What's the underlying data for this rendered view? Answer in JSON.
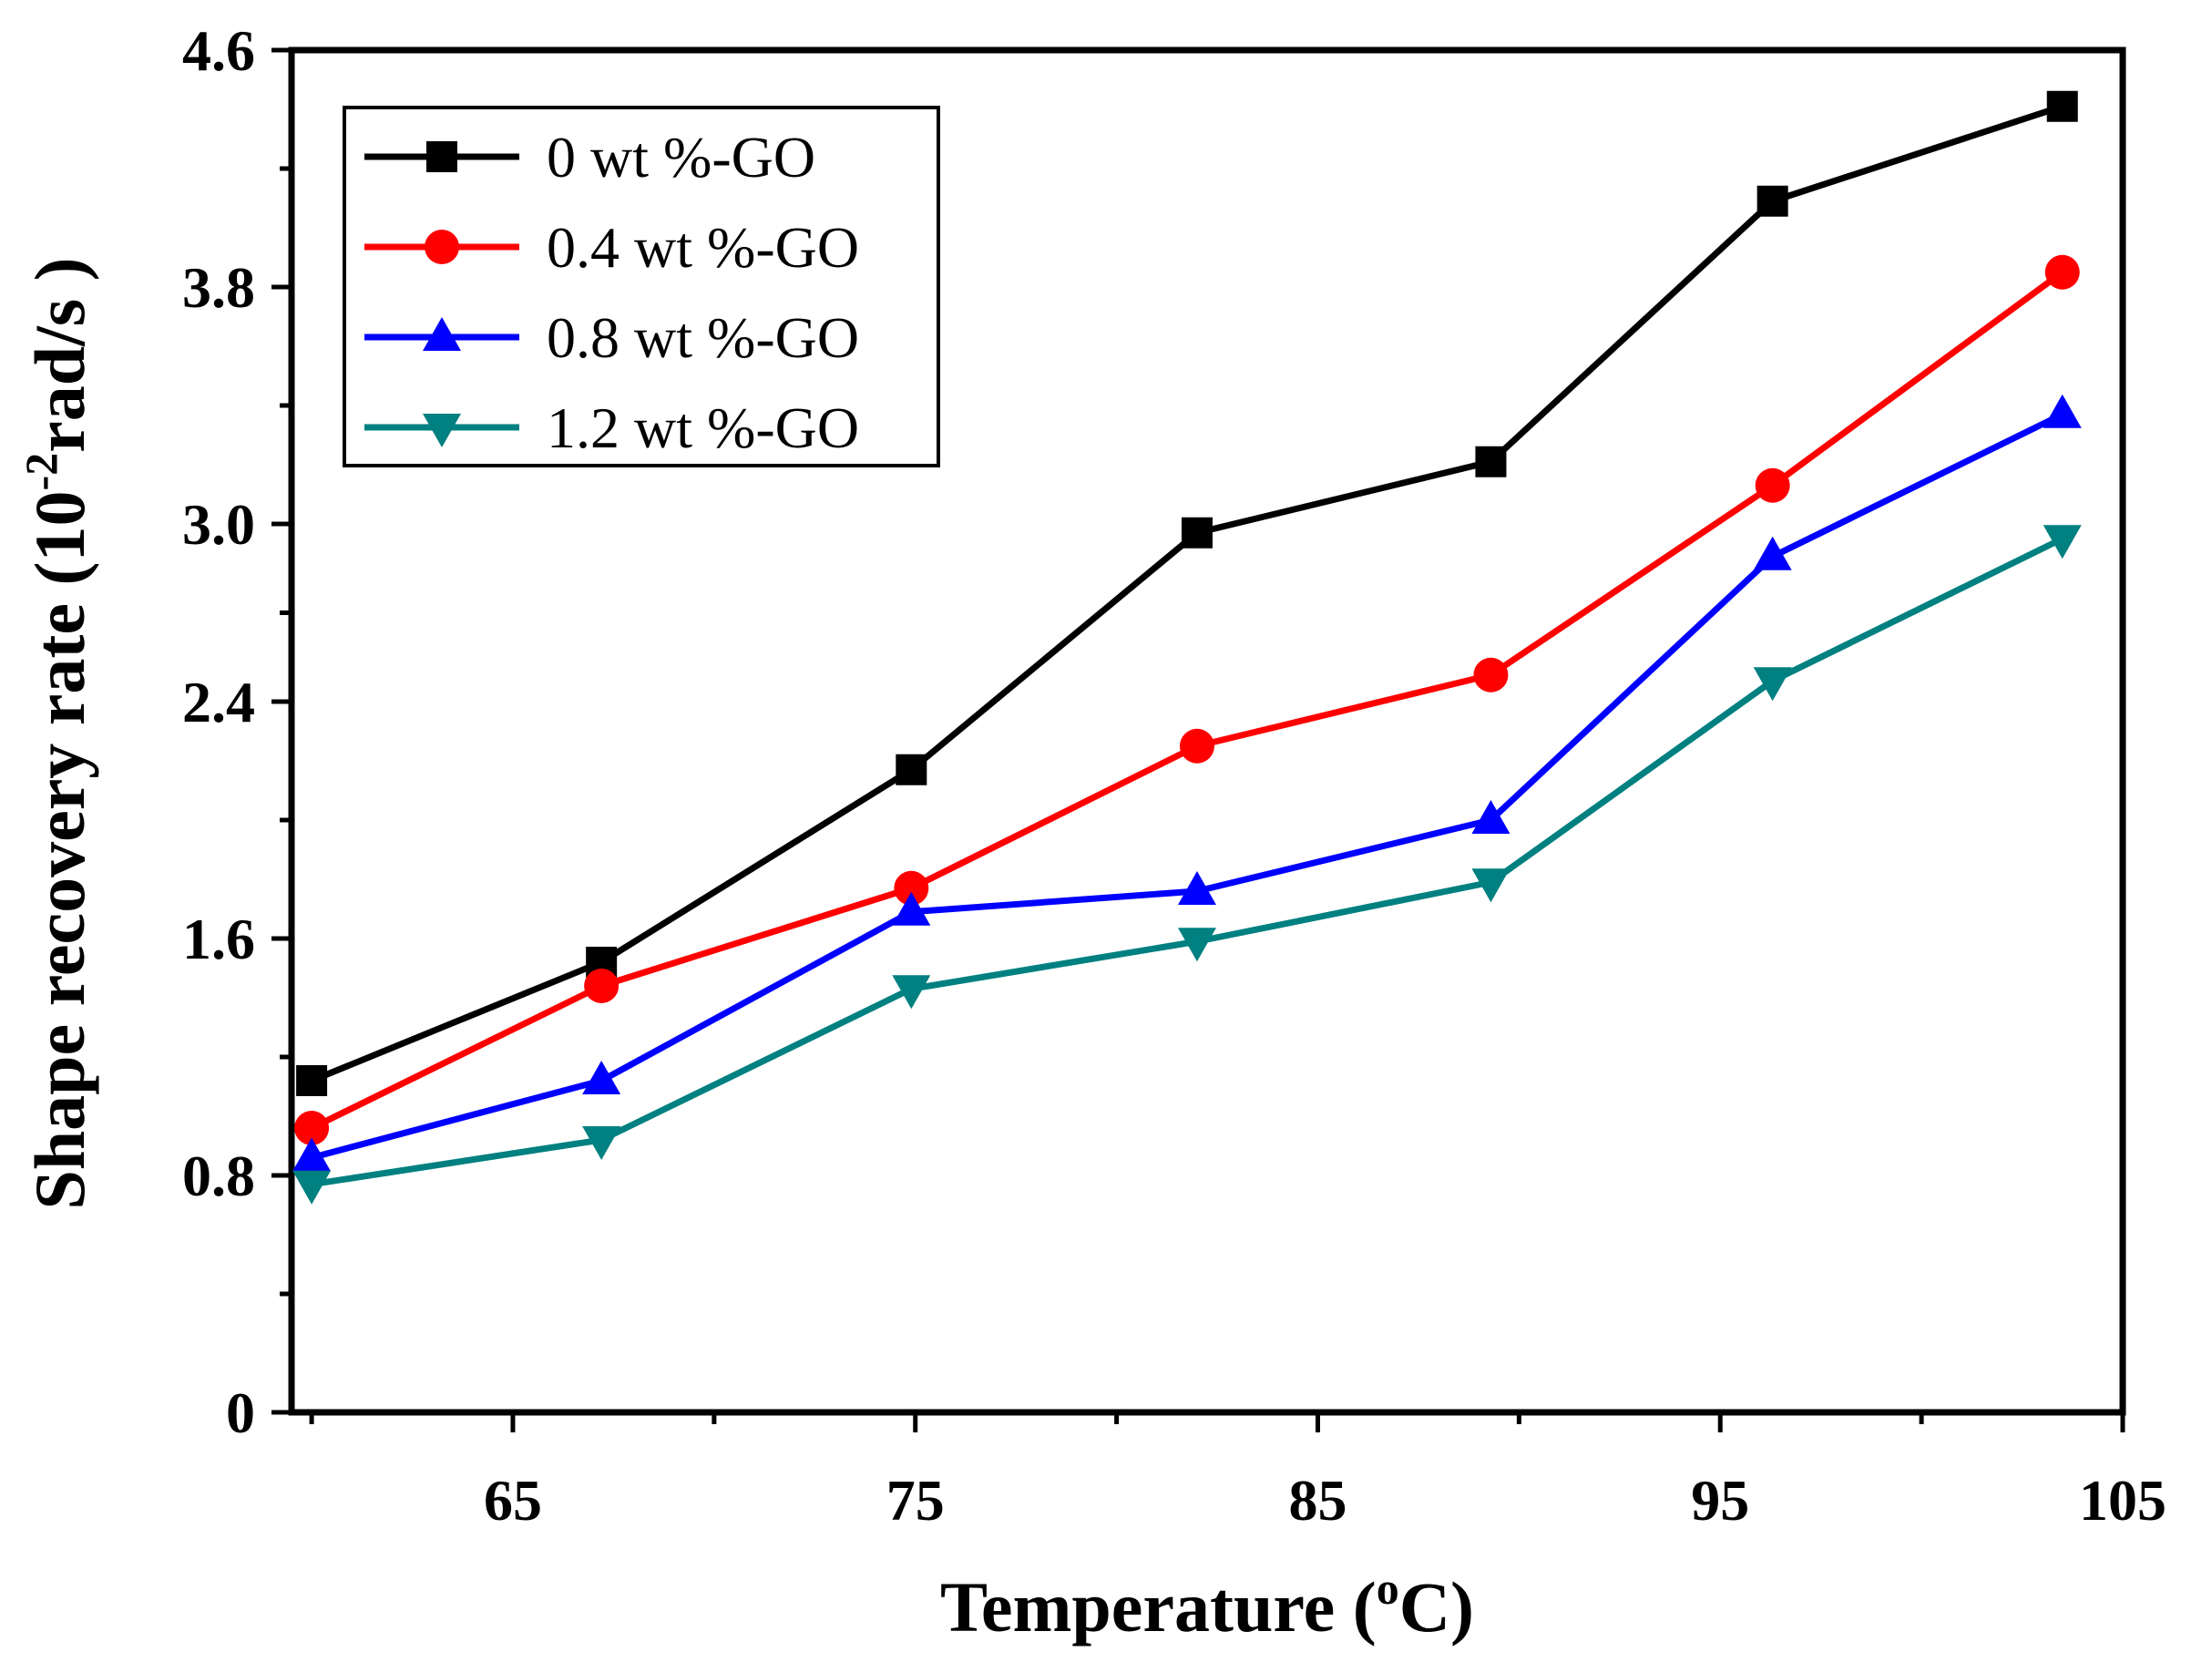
{
  "chart_data": {
    "type": "line",
    "title": "",
    "xlabel": {
      "main": "Temperature (",
      "sup": "o",
      "tail": "C)"
    },
    "ylabel": {
      "main": "Shape recovery rate (10",
      "sup": "-2",
      "tail": "rad/s )"
    },
    "xlim": [
      59.5,
      105
    ],
    "ylim": [
      0,
      4.6
    ],
    "x_ticks": [
      65,
      75,
      85,
      95,
      105
    ],
    "x_tick_labels": [
      "65",
      "75",
      "85",
      "95",
      "105"
    ],
    "y_ticks": [
      0,
      0.8,
      1.6,
      2.4,
      3.0,
      3.8,
      4.6
    ],
    "y_tick_labels": [
      "0",
      "0.8",
      "1.6",
      "2.4",
      "3.0",
      "3.8",
      "4.6"
    ],
    "grid": false,
    "legend_position": "top-left",
    "x": [
      60.0,
      67.2,
      74.9,
      82.0,
      89.3,
      96.3,
      103.5
    ],
    "series": [
      {
        "name": "0 wt %-GO",
        "color": "#000000",
        "marker": "square",
        "values": [
          1.12,
          1.52,
          2.17,
          2.97,
          3.21,
          4.09,
          4.41
        ]
      },
      {
        "name": "0.4 wt %-GO",
        "color": "#ff0000",
        "marker": "circle",
        "values": [
          0.96,
          1.44,
          1.77,
          2.25,
          2.49,
          3.13,
          3.85
        ]
      },
      {
        "name": "0.8 wt %-GO",
        "color": "#0000ff",
        "marker": "triangle-up",
        "values": [
          0.86,
          1.12,
          1.69,
          1.76,
          2.0,
          2.89,
          3.37
        ]
      },
      {
        "name": "1.2 wt %-GO",
        "color": "#008080",
        "marker": "triangle-down",
        "values": [
          0.77,
          0.92,
          1.43,
          1.59,
          1.79,
          2.47,
          2.95
        ]
      }
    ]
  }
}
